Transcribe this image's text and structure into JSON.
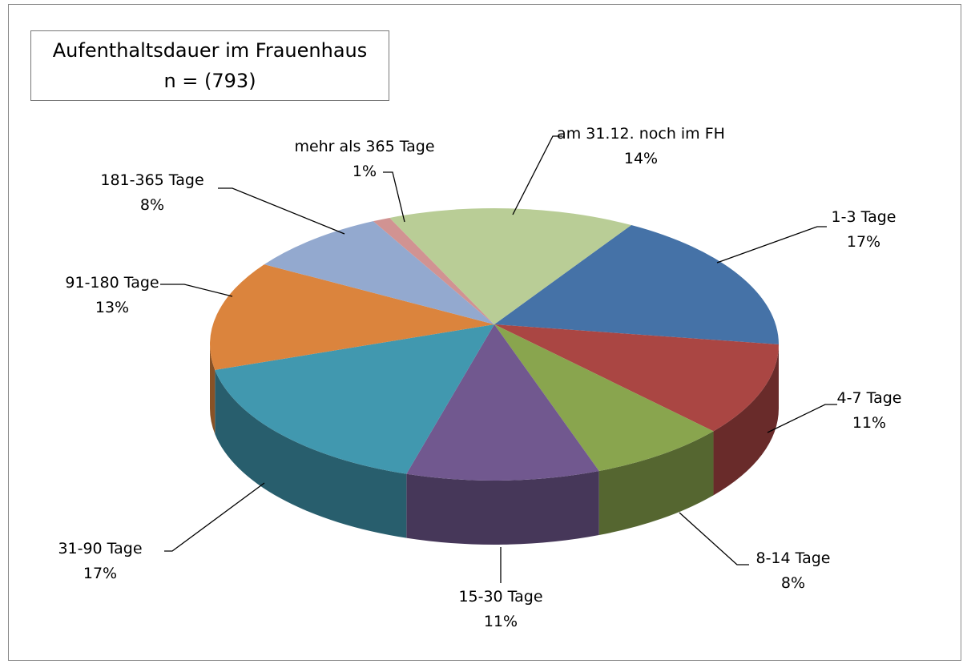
{
  "chart_data": {
    "type": "pie",
    "title": "Aufenthaltsdauer im Frauenhaus",
    "subtitle": "n = (793)",
    "categories": [
      "1-3 Tage",
      "4-7 Tage",
      "8-14 Tage",
      "15-30 Tage",
      "31-90 Tage",
      "91-180 Tage",
      "181-365 Tage",
      "mehr als 365 Tage",
      "am 31.12. noch im FH"
    ],
    "values": [
      17,
      11,
      8,
      11,
      17,
      13,
      8,
      1,
      14
    ],
    "value_labels": [
      "17%",
      "11%",
      "8%",
      "11%",
      "17%",
      "13%",
      "8%",
      "1%",
      "14%"
    ],
    "colors": [
      "#4572a7",
      "#aa4643",
      "#89a54e",
      "#71588f",
      "#4198af",
      "#db843d",
      "#93a9cf",
      "#d19392",
      "#b9cd96"
    ]
  }
}
